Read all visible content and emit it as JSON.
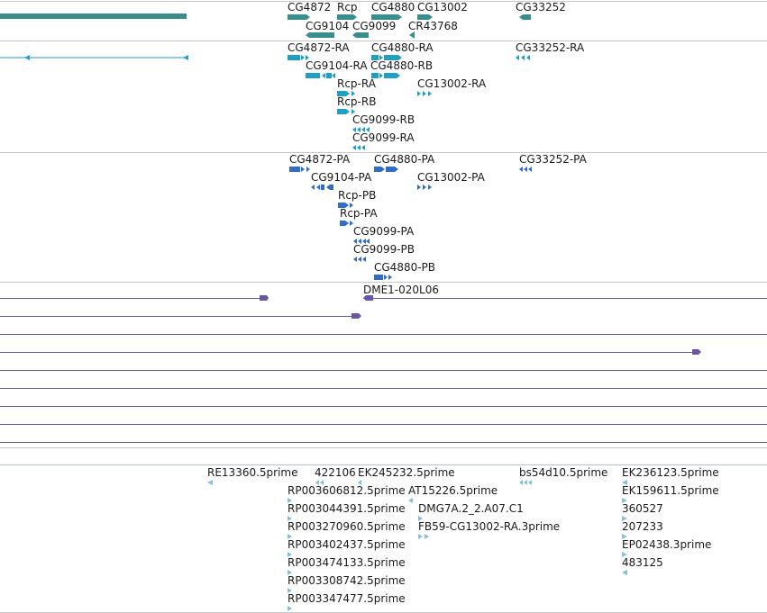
{
  "colors": {
    "gene": "#3a8d8d",
    "transcript": "#1f9fc2",
    "protein": "#2f6dc8",
    "clone": "#6a55a0",
    "est": "#86bfd9",
    "label": "#1a1a1a"
  },
  "genes": [
    {
      "label": "CG4872"
    },
    {
      "label": "Rcp"
    },
    {
      "label": "CG4880"
    },
    {
      "label": "CG13002"
    },
    {
      "label": "CG33252"
    },
    {
      "label": "CG9104"
    },
    {
      "label": "CG9099"
    },
    {
      "label": "CR43768"
    }
  ],
  "transcripts": [
    {
      "label": "CG4872-RA"
    },
    {
      "label": "CG4880-RA"
    },
    {
      "label": "CG33252-RA"
    },
    {
      "label": "CG9104-RA"
    },
    {
      "label": "CG4880-RB"
    },
    {
      "label": "Rcp-RA"
    },
    {
      "label": "CG13002-RA"
    },
    {
      "label": "Rcp-RB"
    },
    {
      "label": "CG9099-RB"
    },
    {
      "label": "CG9099-RA"
    }
  ],
  "proteins": [
    {
      "label": "CG4872-PA"
    },
    {
      "label": "CG4880-PA"
    },
    {
      "label": "CG33252-PA"
    },
    {
      "label": "CG9104-PA"
    },
    {
      "label": "CG13002-PA"
    },
    {
      "label": "Rcp-PB"
    },
    {
      "label": "Rcp-PA"
    },
    {
      "label": "CG9099-PA"
    },
    {
      "label": "CG9099-PB"
    },
    {
      "label": "CG4880-PB"
    }
  ],
  "clones": [
    {
      "label": "DME1-020L06"
    }
  ],
  "ests": [
    {
      "label": "RE13360.5prime"
    },
    {
      "label": "422106"
    },
    {
      "label": "EK245232.5prime"
    },
    {
      "label": "bs54d10.5prime"
    },
    {
      "label": "EK236123.5prime"
    },
    {
      "label": "RP003606812.5prime"
    },
    {
      "label": "AT15226.5prime"
    },
    {
      "label": "EK159611.5prime"
    },
    {
      "label": "RP003044391.5prime"
    },
    {
      "label": "DMG7A.2_2.A07.C1"
    },
    {
      "label": "360527"
    },
    {
      "label": "RP003270960.5prime"
    },
    {
      "label": "FB59-CG13002-RA.3prime"
    },
    {
      "label": "207233"
    },
    {
      "label": "RP003402437.5prime"
    },
    {
      "label": "EP02438.3prime"
    },
    {
      "label": "RP003474133.5prime"
    },
    {
      "label": "483125"
    },
    {
      "label": "RP003308742.5prime"
    },
    {
      "label": "RP003347477.5prime"
    }
  ]
}
